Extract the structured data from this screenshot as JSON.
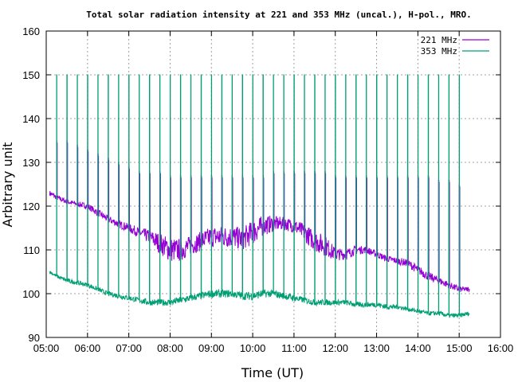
{
  "chart_data": {
    "type": "line",
    "title": "Total solar radiation intensity at 221 and 353 MHz (uncal.), H-pol., MRO.",
    "xlabel": "Time (UT)",
    "ylabel": "Arbitrary unit",
    "xlim": [
      "05:00",
      "16:00"
    ],
    "ylim": [
      90,
      160
    ],
    "x_ticks": [
      "05:00",
      "06:00",
      "07:00",
      "08:00",
      "09:00",
      "10:00",
      "11:00",
      "12:00",
      "13:00",
      "14:00",
      "15:00",
      "16:00"
    ],
    "y_ticks": [
      90,
      100,
      110,
      120,
      130,
      140,
      150,
      160
    ],
    "grid": true,
    "legend_position": "top-right",
    "series": [
      {
        "name": "221 MHz",
        "color": "#9400d3",
        "x": [
          "05:05",
          "05:15",
          "05:30",
          "05:45",
          "06:00",
          "06:15",
          "06:30",
          "06:45",
          "07:00",
          "07:15",
          "07:30",
          "07:45",
          "08:00",
          "08:15",
          "08:30",
          "08:45",
          "09:00",
          "09:15",
          "09:30",
          "09:45",
          "10:00",
          "10:15",
          "10:30",
          "10:45",
          "11:00",
          "11:15",
          "11:30",
          "11:45",
          "12:00",
          "12:15",
          "12:30",
          "12:45",
          "13:00",
          "13:15",
          "13:30",
          "13:45",
          "14:00",
          "14:15",
          "14:30",
          "14:45",
          "15:00",
          "15:15"
        ],
        "values": [
          123,
          122,
          121,
          120.5,
          120,
          118.5,
          117,
          116,
          115,
          114,
          113,
          111.5,
          110,
          110,
          111,
          112,
          113,
          113,
          113,
          112.5,
          114,
          115.5,
          116,
          116,
          115.5,
          114,
          112,
          111,
          109,
          109,
          110,
          110,
          109,
          108,
          107.5,
          107,
          105.5,
          104,
          103,
          102,
          101,
          101
        ],
        "noise": [
          0.6,
          0.6,
          0.6,
          0.6,
          0.7,
          0.8,
          0.8,
          0.9,
          1.0,
          1.2,
          1.6,
          2.4,
          2.8,
          2.6,
          2.2,
          2.2,
          2.4,
          2.5,
          2.5,
          2.6,
          2.8,
          2.4,
          1.8,
          1.5,
          1.6,
          2.0,
          2.4,
          2.4,
          1.5,
          1.2,
          1.0,
          0.8,
          0.8,
          0.7,
          0.8,
          0.9,
          1.0,
          1.0,
          0.9,
          0.8,
          0.7,
          0.5
        ]
      },
      {
        "name": "353 MHz",
        "color": "#009e73",
        "x": [
          "05:05",
          "05:15",
          "05:30",
          "05:45",
          "06:00",
          "06:15",
          "06:30",
          "06:45",
          "07:00",
          "07:15",
          "07:30",
          "07:45",
          "08:00",
          "08:15",
          "08:30",
          "08:45",
          "09:00",
          "09:15",
          "09:30",
          "09:45",
          "10:00",
          "10:15",
          "10:30",
          "10:45",
          "11:00",
          "11:15",
          "11:30",
          "11:45",
          "12:00",
          "12:15",
          "12:30",
          "12:45",
          "13:00",
          "13:15",
          "13:30",
          "13:45",
          "14:00",
          "14:15",
          "14:30",
          "14:45",
          "15:00",
          "15:15"
        ],
        "values": [
          105,
          104,
          103,
          102.5,
          102,
          101,
          100,
          99.5,
          99,
          98.5,
          98,
          98,
          98,
          98.5,
          99,
          99.5,
          100,
          100,
          100,
          99.5,
          99.5,
          100,
          100,
          99.5,
          99,
          98.5,
          98,
          98,
          98,
          98,
          97.5,
          97.5,
          97.5,
          97,
          97,
          96.5,
          96,
          95.5,
          95.5,
          95,
          95,
          95.5
        ],
        "noise": [
          0.4,
          0.4,
          0.5,
          0.5,
          0.5,
          0.5,
          0.5,
          0.6,
          0.6,
          0.6,
          0.7,
          0.7,
          0.8,
          0.8,
          0.8,
          0.8,
          0.9,
          0.9,
          0.9,
          0.9,
          1.0,
          0.9,
          0.8,
          0.8,
          0.8,
          0.7,
          0.7,
          0.7,
          0.6,
          0.6,
          0.6,
          0.6,
          0.6,
          0.6,
          0.5,
          0.5,
          0.5,
          0.5,
          0.5,
          0.5,
          0.5,
          0.5
        ]
      }
    ],
    "calibration_spikes": {
      "times": [
        "05:15",
        "05:30",
        "05:45",
        "06:00",
        "06:15",
        "06:30",
        "06:45",
        "07:00",
        "07:15",
        "07:30",
        "07:45",
        "08:00",
        "08:15",
        "08:30",
        "08:45",
        "09:00",
        "09:15",
        "09:30",
        "09:45",
        "10:00",
        "10:15",
        "10:30",
        "10:45",
        "11:00",
        "11:15",
        "11:30",
        "11:45",
        "12:00",
        "12:15",
        "12:30",
        "12:45",
        "13:00",
        "13:15",
        "13:30",
        "13:45",
        "14:00",
        "14:15",
        "14:30",
        "14:45",
        "15:00"
      ],
      "peak_353": 150,
      "peak_221": [
        135,
        135,
        134,
        133,
        132,
        131,
        130,
        129,
        128,
        128,
        128,
        127,
        127,
        127,
        127,
        127,
        127,
        127,
        127,
        127,
        127,
        128,
        128,
        128,
        128,
        128,
        128,
        127,
        127,
        127,
        127,
        127,
        127,
        127,
        127,
        127,
        127,
        126,
        126,
        125
      ],
      "low_221": [
        126,
        126,
        126,
        126,
        125,
        125,
        125,
        125,
        125,
        125,
        125,
        124,
        124,
        124,
        124,
        124,
        124,
        124,
        124,
        124,
        124,
        124,
        124,
        124,
        124,
        124,
        124,
        124,
        124,
        124,
        123,
        123,
        123,
        123,
        123,
        123,
        123,
        122,
        122,
        122
      ]
    }
  }
}
